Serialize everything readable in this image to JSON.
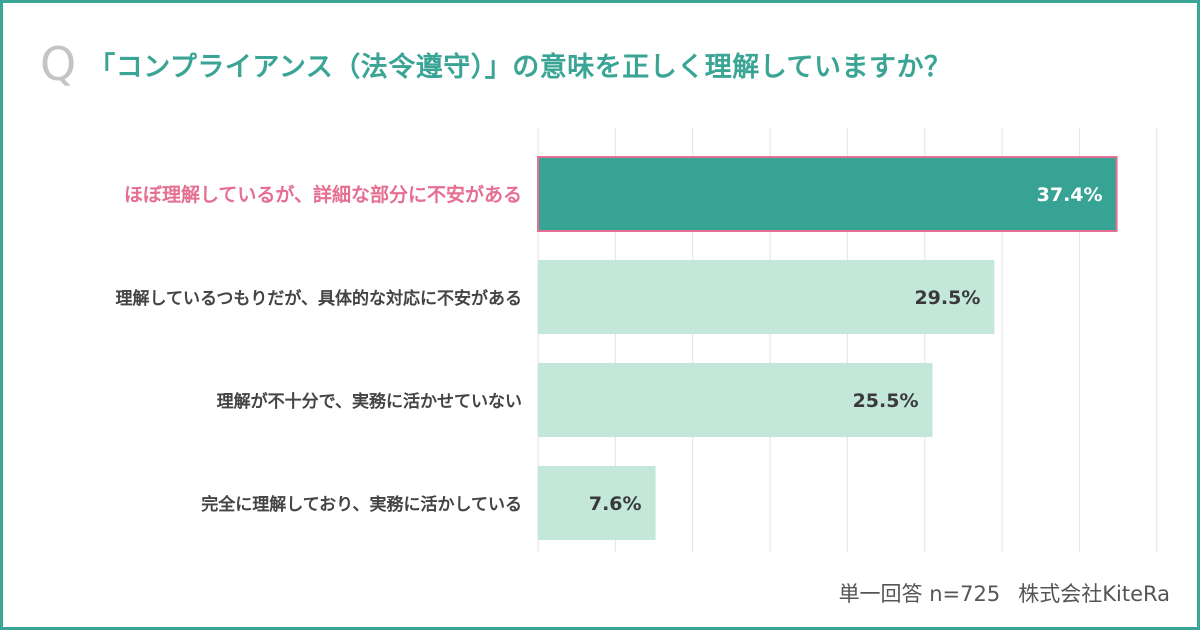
{
  "header": {
    "q_label": "Q",
    "title": "「コンプライアンス（法令遵守）」の意味を正しく理解していますか？"
  },
  "chart_data": {
    "type": "bar",
    "orientation": "horizontal",
    "categories": [
      "ほぼ理解しているが、詳細な部分に不安がある",
      "理解しているつもりだが、具体的な対応に不安がある",
      "理解が不十分で、実務に活かせていない",
      "完全に理解しており、実務に活かしている"
    ],
    "values": [
      37.4,
      29.5,
      25.5,
      7.6
    ],
    "value_labels": [
      "37.4%",
      "29.5%",
      "25.5%",
      "7.6%"
    ],
    "xlim": [
      0,
      40
    ],
    "grid": true,
    "highlight_index": 0,
    "colors": {
      "highlight_bar": "#37a394",
      "highlight_border": "#e56f93",
      "highlight_label": "#e56f93",
      "bar": "#c3e8da",
      "label": "#444444",
      "grid": "#e3e3e3",
      "title": "#3aa595"
    }
  },
  "footer": {
    "base": "単一回答 n=725",
    "source": "株式会社KiteRa"
  }
}
